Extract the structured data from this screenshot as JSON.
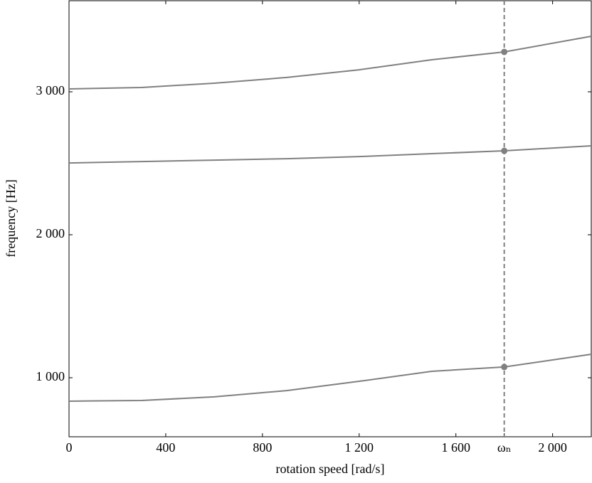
{
  "chart_data": {
    "type": "line",
    "xlabel": "rotation speed [rad/s]",
    "ylabel": "frequency [Hz]",
    "x": [
      0,
      300,
      600,
      900,
      1200,
      1500,
      1800,
      2160
    ],
    "series": [
      {
        "color": "#808080",
        "values": [
          836,
          841,
          866,
          910,
          975,
          1045,
          1075,
          1164
        ]
      },
      {
        "color": "#808080",
        "values": [
          2502,
          2512,
          2522,
          2532,
          2547,
          2567,
          2587,
          2622
        ]
      },
      {
        "color": "#808080",
        "values": [
          3020,
          3030,
          3060,
          3100,
          3154,
          3224,
          3279,
          3388
        ]
      }
    ],
    "vline_x": 1800,
    "vline_color": "#808080",
    "xlim": [
      0,
      2160
    ],
    "ylim": [
      587,
      3637
    ],
    "xticks": [
      0,
      400,
      800,
      {
        "value": 1200,
        "label": "1 200"
      },
      {
        "value": 1600,
        "label": "1 600"
      },
      {
        "value": 1800,
        "label": "ωₙ"
      },
      {
        "value": 2000,
        "label": "2 000"
      }
    ],
    "yticks": [
      {
        "value": 1000,
        "label": "1 000"
      },
      {
        "value": 2000,
        "label": "2 000"
      },
      {
        "value": 3000,
        "label": "3 000"
      }
    ]
  }
}
